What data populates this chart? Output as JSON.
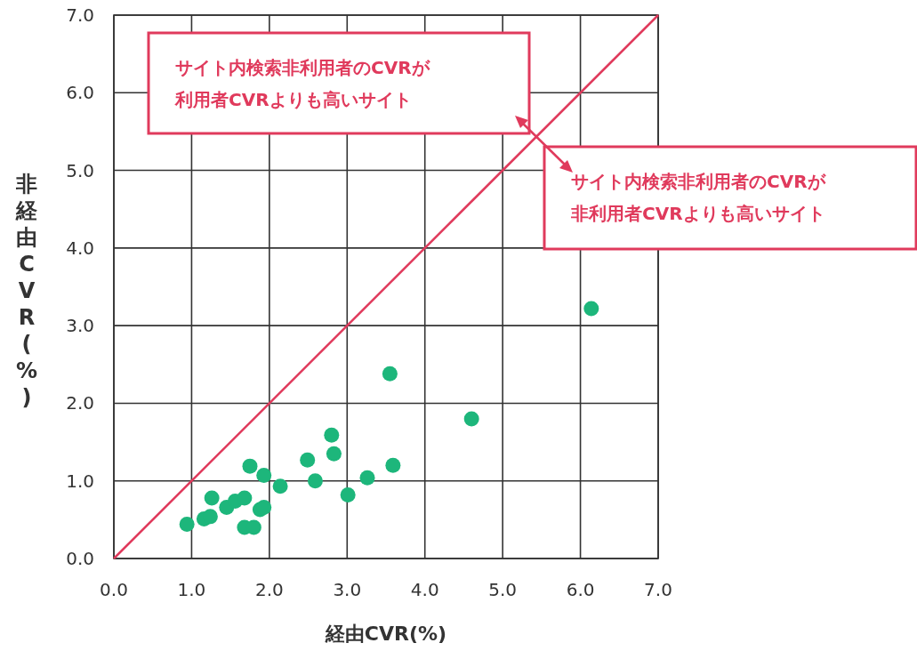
{
  "chart_data": {
    "type": "scatter",
    "xlabel": "経由CVR(%)",
    "ylabel": "非経由CVR(%)",
    "xlim": [
      0,
      7
    ],
    "ylim": [
      0,
      7
    ],
    "xticks": [
      {
        "value": 0,
        "label": "0.0"
      },
      {
        "value": 1,
        "label": "1.0"
      },
      {
        "value": 2,
        "label": "2.0"
      },
      {
        "value": 3,
        "label": "3.0"
      },
      {
        "value": 4,
        "label": "4.0"
      },
      {
        "value": 5,
        "label": "5.0"
      },
      {
        "value": 6,
        "label": "6.0"
      },
      {
        "value": 7,
        "label": "7.0"
      }
    ],
    "yticks": [
      {
        "value": 0,
        "label": "0.0"
      },
      {
        "value": 1,
        "label": "1.0"
      },
      {
        "value": 2,
        "label": "2.0"
      },
      {
        "value": 3,
        "label": "3.0"
      },
      {
        "value": 4,
        "label": "4.0"
      },
      {
        "value": 5,
        "label": "5.0"
      },
      {
        "value": 6,
        "label": "6.0"
      },
      {
        "value": 7,
        "label": "7.0"
      }
    ],
    "grid": true,
    "marker": "circle",
    "series": [
      {
        "color": "#1db67b",
        "x": [
          0.94,
          1.16,
          1.24,
          1.26,
          1.45,
          1.56,
          1.68,
          1.68,
          1.8,
          1.75,
          1.88,
          1.93,
          1.93,
          2.14,
          2.49,
          2.59,
          2.8,
          2.83,
          3.01,
          3.26,
          3.55,
          3.59,
          4.6,
          6.14
        ],
        "values": [
          0.44,
          0.51,
          0.54,
          0.78,
          0.66,
          0.74,
          0.78,
          0.4,
          0.4,
          1.19,
          0.63,
          0.66,
          1.07,
          0.93,
          1.27,
          1.0,
          1.59,
          1.35,
          0.82,
          1.04,
          2.38,
          1.2,
          1.8,
          3.22
        ]
      },
      {
        "type": "line",
        "marker": "none",
        "color": "#e03a5c",
        "x": [
          0,
          7
        ],
        "values": [
          0,
          7
        ]
      }
    ],
    "annotations": [
      "サイト内検索非利用者のCVRが利用者CVRよりも高いサイト",
      "サイト内検索非利用者のCVRが非利用者CVRよりも高いサイト"
    ]
  }
}
